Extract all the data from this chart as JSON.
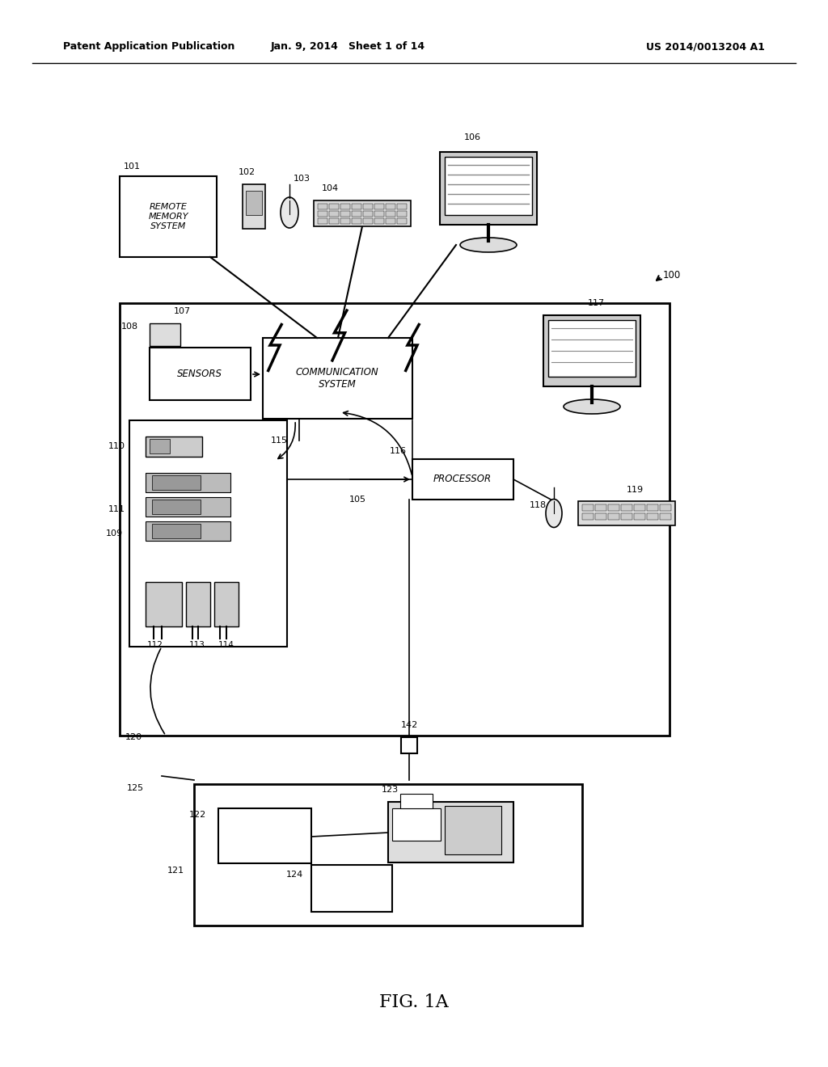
{
  "header_left": "Patent Application Publication",
  "header_mid": "Jan. 9, 2014   Sheet 1 of 14",
  "header_right": "US 2014/0013204 A1",
  "fig_label": "FIG. 1A",
  "bg_color": "#ffffff"
}
